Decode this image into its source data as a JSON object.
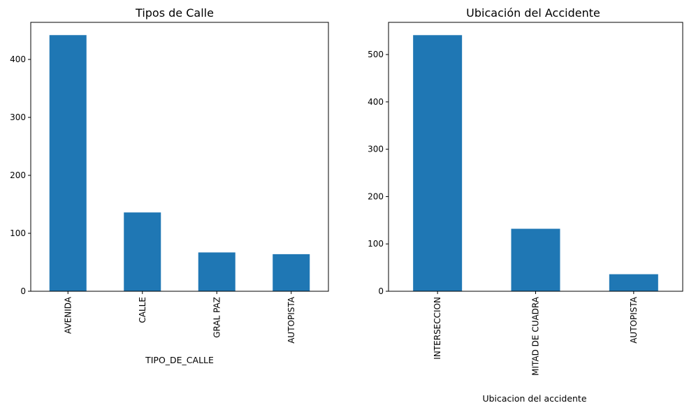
{
  "chart_data": [
    {
      "type": "bar",
      "title": "Tipos de Calle",
      "xlabel": "TIPO_DE_CALLE",
      "ylabel": "",
      "categories": [
        "AVENIDA",
        "CALLE",
        "GRAL PAZ",
        "AUTOPISTA"
      ],
      "values": [
        442,
        136,
        67,
        64
      ],
      "ylim": [
        0,
        464
      ],
      "yticks": [
        0,
        100,
        200,
        300,
        400
      ],
      "color": "#1f77b4",
      "grid": false,
      "legend": "none"
    },
    {
      "type": "bar",
      "title": "Ubicación del Accidente",
      "xlabel": "Ubicacion del accidente",
      "ylabel": "",
      "categories": [
        "INTERSECCION",
        "MITAD DE CUADRA",
        "AUTOPISTA"
      ],
      "values": [
        541,
        132,
        36
      ],
      "ylim": [
        0,
        568
      ],
      "yticks": [
        0,
        100,
        200,
        300,
        400,
        500
      ],
      "color": "#1f77b4",
      "grid": false,
      "legend": "none"
    }
  ]
}
